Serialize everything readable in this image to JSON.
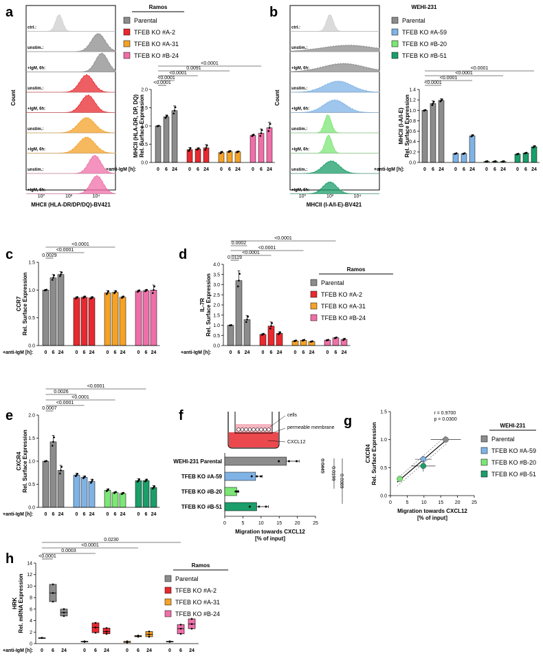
{
  "colors": {
    "parental": "#8c8c8c",
    "ramos_a2": "#e8292f",
    "ramos_a31": "#f4a228",
    "ramos_b24": "#ef6fa8",
    "wehi_a59": "#7fb3e6",
    "wehi_b20": "#7ce676",
    "wehi_b51": "#1a9e6a",
    "ctrl": "#cfcfcf"
  },
  "legends": {
    "ramos": {
      "title": "Ramos",
      "items": [
        "Parental",
        "TFEB KO #A-2",
        "TFEB KO #A-31",
        "TFEB KO #B-24"
      ]
    },
    "wehi": {
      "title": "WEHI-231",
      "items": [
        "Parental",
        "TFEB KO #A-59",
        "TFEB KO #B-20",
        "TFEB KO #B-51"
      ]
    }
  },
  "panel_a_flow": {
    "letter": "a",
    "ylabel": "Count",
    "xlabel": "MHCII (HLA-DR/DP/DQ)-BV421",
    "xticks": [
      "10⁰",
      "10²",
      "10⁴"
    ],
    "rows": [
      "ctrl.:",
      "unstim.:",
      "+IgM, 6h:",
      "unstim.:",
      "+IgM, 6h:",
      "unstim.:",
      "+IgM, 6h:",
      "unstim.:",
      "+IgM, 6h:"
    ]
  },
  "panel_b_flow": {
    "letter": "b",
    "ylabel": "Count",
    "xlabel": "MHCII (I-A/I-E)-BV421",
    "xticks": [
      "10⁰",
      "10²",
      "10⁴"
    ],
    "rows": [
      "ctrl.:",
      "unstim.:",
      "+IgM, 6h:",
      "unstim.:",
      "+IgM, 6h:",
      "unstim.:",
      "+IgM, 6h:",
      "unstim.:",
      "+IgM, 6h:"
    ]
  },
  "treatment_label": "+anti-IgM [h]:",
  "timepoints": [
    "0",
    "6",
    "24"
  ],
  "chart_data": [
    {
      "id": "a_bar",
      "type": "bar",
      "ylabel_lines": [
        "MHCII (HLA-DR, DP, DQ)",
        "Rel. Surface Expression"
      ],
      "ylim": [
        0,
        2.0
      ],
      "yticks": [
        0,
        0.5,
        1.0,
        1.5,
        2.0
      ],
      "tick_labels": [
        "0.0",
        "0.5",
        "1.0",
        "1.5",
        "2.0"
      ],
      "series": [
        {
          "name": "Parental",
          "values": [
            1.0,
            1.25,
            1.42
          ],
          "errors": [
            0.01,
            0.05,
            0.13
          ]
        },
        {
          "name": "TFEB KO #A-2",
          "values": [
            0.35,
            0.37,
            0.4
          ],
          "errors": [
            0.06,
            0.03,
            0.09
          ]
        },
        {
          "name": "TFEB KO #A-31",
          "values": [
            0.27,
            0.3,
            0.29
          ],
          "errors": [
            0.03,
            0.02,
            0.02
          ]
        },
        {
          "name": "TFEB KO #B-24",
          "values": [
            0.74,
            0.8,
            0.95
          ],
          "errors": [
            0.03,
            0.12,
            0.15
          ]
        }
      ],
      "annotations": [
        "<0.0001",
        "<0.0001",
        "<0.0001",
        "0.0091",
        "<0.0001"
      ]
    },
    {
      "id": "b_bar",
      "type": "bar",
      "ylabel_lines": [
        "MHCII (I-A/I-E)",
        "Rel. Surface Expression"
      ],
      "ylim": [
        0,
        1.4
      ],
      "yticks": [
        0,
        0.2,
        0.4,
        0.6,
        0.8,
        1.0,
        1.2,
        1.4
      ],
      "tick_labels": [
        "0.0",
        "0.2",
        "0.4",
        "0.6",
        "0.8",
        "1.0",
        "1.2",
        "1.4"
      ],
      "series": [
        {
          "name": "Parental",
          "values": [
            1.0,
            1.13,
            1.19
          ],
          "errors": [
            0.01,
            0.05,
            0.03
          ]
        },
        {
          "name": "TFEB KO #A-59",
          "values": [
            0.17,
            0.17,
            0.51
          ],
          "errors": [
            0.01,
            0.01,
            0.02
          ]
        },
        {
          "name": "TFEB KO #B-20",
          "values": [
            0.02,
            0.02,
            0.02
          ],
          "errors": [
            0.005,
            0.005,
            0.005
          ]
        },
        {
          "name": "TFEB KO #B-51",
          "values": [
            0.16,
            0.18,
            0.3
          ],
          "errors": [
            0.01,
            0.01,
            0.02
          ]
        }
      ],
      "annotations": [
        "<0.0001",
        "<0.0001",
        "<0.0001",
        "<0.0001"
      ]
    },
    {
      "id": "c_bar",
      "type": "bar",
      "letter": "c",
      "ylabel_lines": [
        "CCR7",
        "Rel. Surface Expression"
      ],
      "ylim": [
        0,
        1.5
      ],
      "yticks": [
        0,
        0.5,
        1.0,
        1.5
      ],
      "tick_labels": [
        "0.0",
        "0.5",
        "1.0",
        "1.5"
      ],
      "series": [
        {
          "name": "Parental",
          "values": [
            1.0,
            1.22,
            1.28
          ],
          "errors": [
            0.01,
            0.06,
            0.05
          ]
        },
        {
          "name": "TFEB KO #A-2",
          "values": [
            0.86,
            0.87,
            0.86
          ],
          "errors": [
            0.02,
            0.02,
            0.02
          ]
        },
        {
          "name": "TFEB KO #A-31",
          "values": [
            0.95,
            0.96,
            0.87
          ],
          "errors": [
            0.04,
            0.03,
            0.02
          ]
        },
        {
          "name": "TFEB KO #B-24",
          "values": [
            0.98,
            0.99,
            1.0
          ],
          "errors": [
            0.02,
            0.02,
            0.09
          ]
        }
      ],
      "annotations": [
        "0.0029",
        "<0.0001",
        "<0.0001"
      ]
    },
    {
      "id": "d_bar",
      "type": "bar",
      "letter": "d",
      "ylabel_lines": [
        "IL-7R",
        "Rel. Surface Expression"
      ],
      "ylim": [
        0,
        4.0
      ],
      "yticks": [
        0,
        0.5,
        1.0,
        1.5,
        2.0,
        2.5,
        3.0,
        3.5,
        4.0
      ],
      "tick_labels": [
        "0.0",
        "0.5",
        "1.0",
        "1.5",
        "2.0",
        "2.5",
        "3.0",
        "3.5",
        "4.0"
      ],
      "series": [
        {
          "name": "Parental",
          "values": [
            1.0,
            3.2,
            1.28
          ],
          "errors": [
            0.01,
            0.48,
            0.2
          ]
        },
        {
          "name": "TFEB KO #A-2",
          "values": [
            0.55,
            0.96,
            0.6
          ],
          "errors": [
            0.04,
            0.2,
            0.08
          ]
        },
        {
          "name": "TFEB KO #A-31",
          "values": [
            0.23,
            0.26,
            0.2
          ],
          "errors": [
            0.03,
            0.03,
            0.02
          ]
        },
        {
          "name": "TFEB KO #B-24",
          "values": [
            0.27,
            0.38,
            0.3
          ],
          "errors": [
            0.02,
            0.03,
            0.05
          ]
        }
      ],
      "annotations": [
        "0.0119",
        "<0.0001",
        "<0.0001",
        "0.0002",
        "<0.0001"
      ]
    },
    {
      "id": "e_bar",
      "type": "bar",
      "letter": "e",
      "ylabel_lines": [
        "CXCR4",
        "Rel. Surface Expression"
      ],
      "ylim": [
        0,
        2.0
      ],
      "yticks": [
        0,
        0.5,
        1.0,
        1.5,
        2.0
      ],
      "tick_labels": [
        "0.0",
        "0.5",
        "1.0",
        "1.5",
        "2.0"
      ],
      "series": [
        {
          "name": "Parental",
          "values": [
            1.0,
            1.42,
            0.8
          ],
          "errors": [
            0.01,
            0.14,
            0.11
          ]
        },
        {
          "name": "TFEB KO #A-59",
          "values": [
            0.7,
            0.65,
            0.56
          ],
          "errors": [
            0.04,
            0.03,
            0.05
          ]
        },
        {
          "name": "TFEB KO #B-20",
          "values": [
            0.37,
            0.32,
            0.3
          ],
          "errors": [
            0.03,
            0.02,
            0.02
          ]
        },
        {
          "name": "TFEB KO #B-51",
          "values": [
            0.58,
            0.58,
            0.43
          ],
          "errors": [
            0.04,
            0.03,
            0.04
          ]
        }
      ],
      "annotations": [
        "0.0007",
        "<0.0001",
        "<0.0001",
        "0.0026",
        "<0.0001"
      ]
    },
    {
      "id": "f_hbar",
      "type": "bar",
      "orientation": "horizontal",
      "letter": "f",
      "categories": [
        "WEHI-231 Parental",
        "TFEB KO #A-59",
        "TFEB KO #B-20",
        "TFEB KO #B-51"
      ],
      "values": [
        17.0,
        8.5,
        3.3,
        8.8
      ],
      "errors": [
        3.5,
        1.8,
        0.5,
        3.2
      ],
      "xlim": [
        0,
        25
      ],
      "xticks": [
        0,
        5,
        10,
        15,
        20,
        25
      ],
      "xlabel_lines": [
        "Migration towards CXCL12",
        "[% of input]"
      ],
      "pvalues": [
        "0.0445",
        "0.0199",
        "0.0389"
      ],
      "inset_labels": [
        "cells",
        "permeable membrane",
        "CXCL12"
      ]
    },
    {
      "id": "g_scatter",
      "type": "scatter",
      "letter": "g",
      "points": [
        {
          "name": "Parental",
          "x": 16.5,
          "y": 1.0,
          "xerr": 4.5,
          "yerr": 0.0
        },
        {
          "name": "TFEB KO #A-59",
          "x": 9.8,
          "y": 0.65,
          "xerr": 2.5,
          "yerr": 0.06
        },
        {
          "name": "TFEB KO #B-20",
          "x": 2.8,
          "y": 0.3,
          "xerr": 0.6,
          "yerr": 0.03
        },
        {
          "name": "TFEB KO #B-51",
          "x": 9.8,
          "y": 0.53,
          "xerr": 3.6,
          "yerr": 0.1
        }
      ],
      "xlim": [
        0,
        25
      ],
      "ylim": [
        0,
        1.5
      ],
      "xticks": [
        0,
        5,
        10,
        15,
        20,
        25
      ],
      "yticks": [
        0,
        0.5,
        1.0,
        1.5
      ],
      "ytick_labels": [
        "0.0",
        "0.5",
        "1.0",
        "1.5"
      ],
      "xlabel_lines": [
        "Migration towards CXCL12",
        "[% of input]"
      ],
      "ylabel_lines": [
        "CXCR4",
        "Rel. Surface Expression"
      ],
      "stats": [
        "r = 0.9700",
        "p = 0.0300"
      ]
    },
    {
      "id": "h_box",
      "type": "bar",
      "subtype": "box",
      "letter": "h",
      "ylabel_lines": [
        "HRK",
        "Rel. mRNA Expression"
      ],
      "ylim": [
        0,
        14
      ],
      "yticks": [
        0,
        2,
        4,
        6,
        8,
        10,
        12,
        14
      ],
      "tick_labels": [
        "0",
        "2",
        "4",
        "6",
        "8",
        "10",
        "12",
        "14"
      ],
      "series": [
        {
          "name": "Parental",
          "values": [
            1.0,
            8.8,
            5.4
          ],
          "low": [
            1.0,
            7.3,
            4.8
          ],
          "high": [
            1.0,
            10.3,
            6.0
          ]
        },
        {
          "name": "TFEB KO #A-2",
          "values": [
            0.35,
            2.8,
            2.1
          ],
          "low": [
            0.3,
            1.9,
            1.7
          ],
          "high": [
            0.4,
            3.6,
            2.7
          ]
        },
        {
          "name": "TFEB KO #A-31",
          "values": [
            0.35,
            1.3,
            1.6
          ],
          "low": [
            0.2,
            1.2,
            1.2
          ],
          "high": [
            0.4,
            1.4,
            2.1
          ]
        },
        {
          "name": "TFEB KO #B-24",
          "values": [
            0.35,
            2.6,
            3.4
          ],
          "low": [
            0.3,
            1.7,
            2.6
          ],
          "high": [
            0.4,
            3.3,
            4.3
          ]
        }
      ],
      "annotations": [
        "<0.0001",
        "0.0003",
        "<0.0001",
        "0.0230"
      ]
    }
  ]
}
